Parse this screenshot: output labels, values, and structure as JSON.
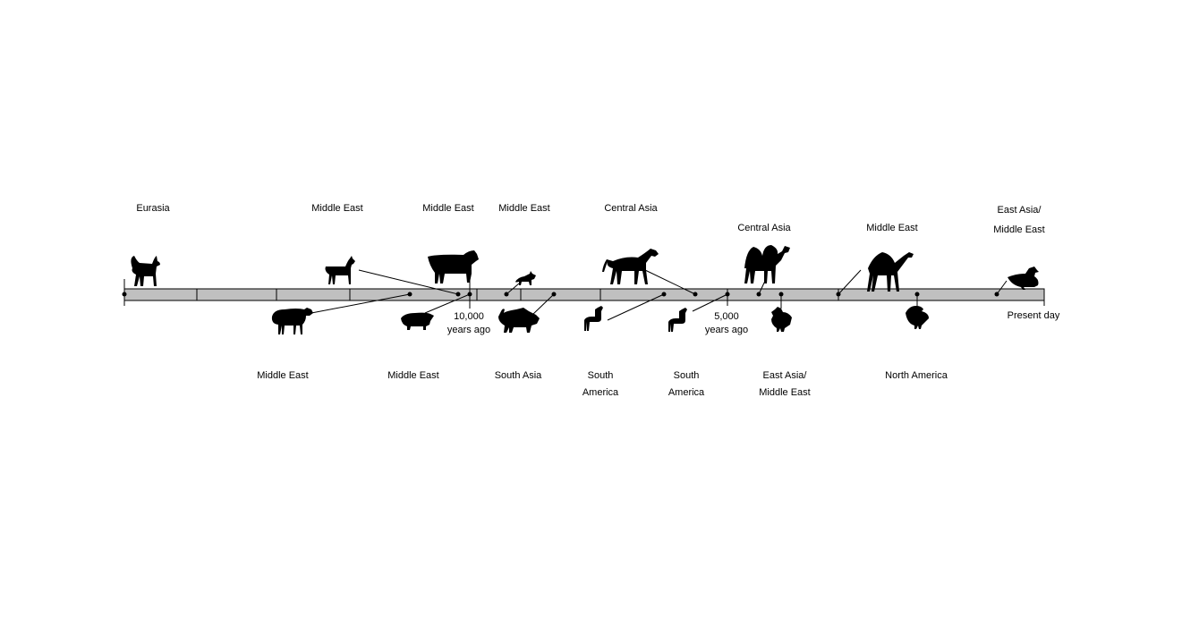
{
  "timeline": {
    "ticks": {
      "ten_thousand": [
        "10,000",
        "years ago"
      ],
      "five_thousand": [
        "5,000",
        "years ago"
      ],
      "present": "Present day"
    }
  },
  "animals_above": [
    {
      "animal": "dog",
      "region": [
        "Eurasia"
      ]
    },
    {
      "animal": "goat",
      "region": [
        "Middle East"
      ]
    },
    {
      "animal": "cattle",
      "region": [
        "Middle East"
      ]
    },
    {
      "animal": "cat",
      "region": [
        "Middle East"
      ]
    },
    {
      "animal": "horse",
      "region": [
        "Central Asia"
      ]
    },
    {
      "animal": "bactrian-camel",
      "region": [
        "Central Asia"
      ]
    },
    {
      "animal": "dromedary-camel",
      "region": [
        "Middle East"
      ]
    },
    {
      "animal": "duck",
      "region": [
        "East Asia/",
        "Middle East"
      ]
    }
  ],
  "animals_below": [
    {
      "animal": "sheep",
      "region": [
        "Middle East"
      ]
    },
    {
      "animal": "pig",
      "region": [
        "Middle East"
      ]
    },
    {
      "animal": "water-buffalo",
      "region": [
        "South Asia"
      ]
    },
    {
      "animal": "llama",
      "region": [
        "South",
        "America"
      ]
    },
    {
      "animal": "alpaca",
      "region": [
        "South",
        "America"
      ]
    },
    {
      "animal": "chicken",
      "region": [
        "East Asia/",
        "Middle East"
      ]
    },
    {
      "animal": "turkey",
      "region": [
        "North America"
      ]
    }
  ],
  "colors": {
    "bar_fill": "#c0c0c0",
    "bar_stroke": "#000000",
    "silhouette": "#000000"
  }
}
